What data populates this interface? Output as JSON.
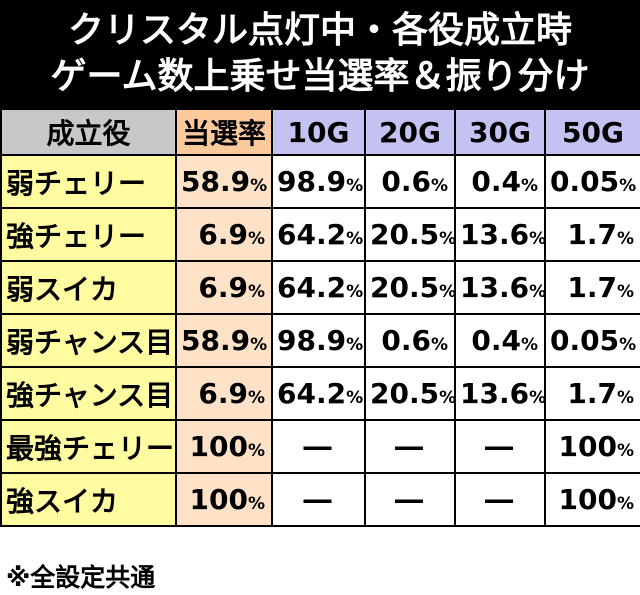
{
  "title": {
    "line1": "クリスタル点灯中・各役成立時",
    "line2": "ゲーム数上乗せ当選率＆振り分け"
  },
  "table": {
    "headers": [
      "成立役",
      "当選率",
      "10G",
      "20G",
      "30G",
      "50G"
    ],
    "rows": [
      [
        "弱チェリー",
        "58.9%",
        "98.9%",
        "0.6%",
        "0.4%",
        "0.05%"
      ],
      [
        "強チェリー",
        "6.9%",
        "64.2%",
        "20.5%",
        "13.6%",
        "1.7%"
      ],
      [
        "弱スイカ",
        "6.9%",
        "64.2%",
        "20.5%",
        "13.6%",
        "1.7%"
      ],
      [
        "弱チャンス目",
        "58.9%",
        "98.9%",
        "0.6%",
        "0.4%",
        "0.05%"
      ],
      [
        "強チャンス目",
        "6.9%",
        "64.2%",
        "20.5%",
        "13.6%",
        "1.7%"
      ],
      [
        "最強チェリー",
        "100%",
        "―",
        "―",
        "―",
        "100%"
      ],
      [
        "強スイカ",
        "100%",
        "―",
        "―",
        "―",
        "100%"
      ]
    ]
  },
  "footnote": "※全設定共通",
  "colors": {
    "header_bg": "#000000",
    "role_header_bg": "#c8c8c8",
    "rate_header_bg": "#fbc99c",
    "game_header_bg": "#c4c2f1",
    "role_cell_bg": "#fffba0",
    "rate_cell_bg": "#fde2c8"
  }
}
